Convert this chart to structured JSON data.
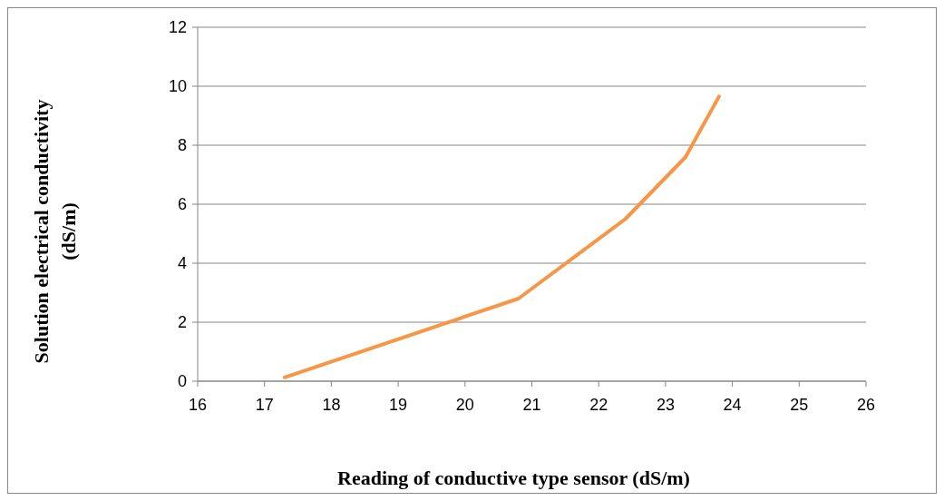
{
  "chart_data": {
    "type": "line",
    "xlabel": "Reading of conductive type sensor (dS/m)",
    "ylabel": "Solution electrical conductivity (dS/m)",
    "series": [
      {
        "color": "#f79646",
        "x": [
          17.3,
          20.8,
          22.4,
          23.3,
          23.8
        ],
        "values": [
          0.13,
          2.8,
          5.5,
          7.6,
          9.65
        ]
      }
    ],
    "xlim": [
      16,
      26
    ],
    "xticks": [
      16,
      17,
      18,
      19,
      20,
      21,
      22,
      23,
      24,
      25,
      26
    ],
    "ylim": [
      0,
      12
    ],
    "yticks": [
      0,
      2,
      4,
      6,
      8,
      10,
      12
    ],
    "grid": "y",
    "marker": "none",
    "line_style": "solid"
  }
}
